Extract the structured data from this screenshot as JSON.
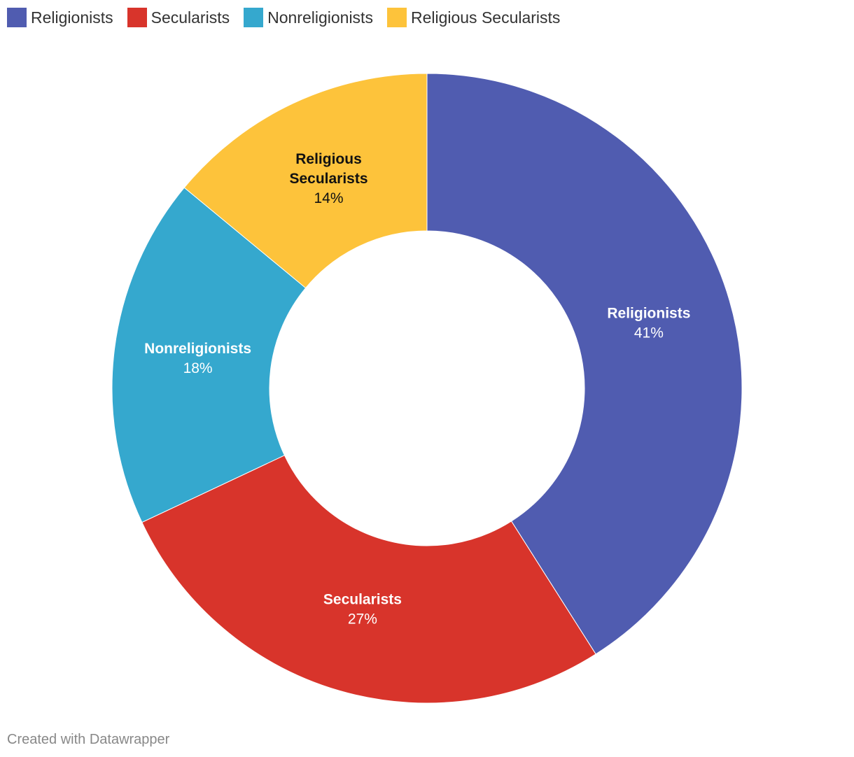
{
  "chart_data": {
    "type": "pie",
    "donut": true,
    "categories": [
      "Religionists",
      "Secularists",
      "Nonreligionists",
      "Religious Secularists"
    ],
    "values": [
      41,
      27,
      18,
      14
    ],
    "value_labels": [
      "41%",
      "27%",
      "18%",
      "14%"
    ],
    "colors": [
      "#505cb0",
      "#d8342b",
      "#35a8ce",
      "#fdc33b"
    ],
    "label_colors": [
      "#ffffff",
      "#ffffff",
      "#ffffff",
      "#111111"
    ],
    "label_lines": [
      [
        "Religionists"
      ],
      [
        "Secularists"
      ],
      [
        "Nonreligionists"
      ],
      [
        "Religious",
        "Secularists"
      ]
    ],
    "legend": {
      "placement": "top-left",
      "items": [
        {
          "label": "Religionists",
          "color": "#505cb0"
        },
        {
          "label": "Secularists",
          "color": "#d8342b"
        },
        {
          "label": "Nonreligionists",
          "color": "#35a8ce"
        },
        {
          "label": "Religious Secularists",
          "color": "#fdc33b"
        }
      ]
    }
  },
  "footer": {
    "credit": "Created with Datawrapper"
  }
}
